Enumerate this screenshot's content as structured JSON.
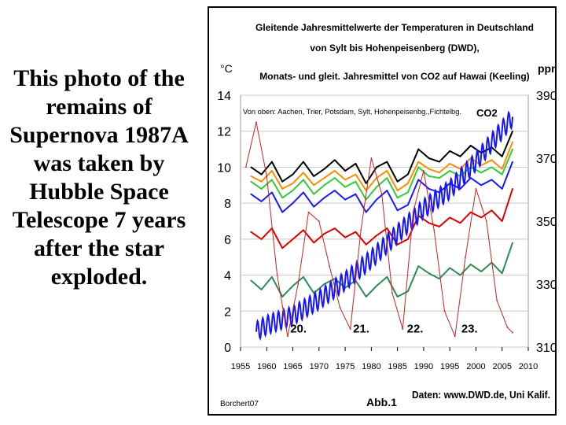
{
  "caption": {
    "text": "This photo of the remains of Supernova 1987A was taken by Hubble Space Telescope 7 years after the star exploded."
  },
  "chart_data": {
    "type": "line",
    "title_lines": [
      "Gleitende Jahresmittelwerte der Temperaturen in Deutschland",
      "von Sylt bis Hohenpeisenberg (DWD),",
      "Monats-  und gleit. Jahresmittel von CO2 auf Hawai (Keeling)"
    ],
    "left_unit": "°C",
    "right_unit": "ppm",
    "legend_text": "Von oben: Aachen, Trier, Potsdam, Sylt, Hohenpeisenbg.,Fichtelbg.",
    "co2_label": "CO2",
    "xlim": [
      1955,
      2010
    ],
    "ylim_left": [
      0,
      14
    ],
    "ylim_right": [
      310,
      390
    ],
    "x_ticks": [
      "1955",
      "1960",
      "1965",
      "1970",
      "1975",
      "1980",
      "1985",
      "1990",
      "1995",
      "2000",
      "2005",
      "2010"
    ],
    "y_left_ticks": [
      "0",
      "2",
      "4",
      "6",
      "8",
      "10",
      "12",
      "14"
    ],
    "y_right_ticks": [
      "310",
      "330",
      "350",
      "370",
      "390"
    ],
    "cycle_labels": [
      {
        "text": "20.",
        "x": 1964.5,
        "y": 0.8
      },
      {
        "text": "21.",
        "x": 1976.5,
        "y": 0.8
      },
      {
        "text": "22.",
        "x": 1986.8,
        "y": 0.8
      },
      {
        "text": "23.",
        "x": 1997.2,
        "y": 0.8
      }
    ],
    "footer": {
      "left": "Borchert07",
      "center": "Abb.1",
      "right": "Daten: www.DWD.de, Uni Kalif."
    },
    "colors": {
      "aachen": "#000000",
      "trier": "#ff8c00",
      "potsdam": "#33cc33",
      "sylt": "#1a1aff",
      "hohenpeissenberg": "#e00000",
      "fichtelberg": "#2e8b57",
      "co2": "#1414ff",
      "sunspots": "#d42020"
    },
    "series": [
      {
        "name": "Aachen",
        "color_key": "aachen",
        "x": [
          1957,
          1959,
          1961,
          1963,
          1965,
          1967,
          1969,
          1971,
          1973,
          1975,
          1977,
          1979,
          1981,
          1983,
          1985,
          1987,
          1989,
          1991,
          1993,
          1995,
          1997,
          1999,
          2001,
          2003,
          2005,
          2007
        ],
        "y": [
          10.0,
          9.6,
          10.3,
          9.2,
          9.6,
          10.3,
          9.5,
          9.9,
          10.4,
          9.8,
          10.2,
          9.1,
          10.0,
          10.3,
          9.2,
          9.6,
          11.0,
          10.5,
          10.3,
          10.9,
          10.6,
          11.2,
          10.8,
          11.1,
          10.6,
          12.0
        ]
      },
      {
        "name": "Trier",
        "color_key": "trier",
        "x": [
          1957,
          1959,
          1961,
          1963,
          1965,
          1967,
          1969,
          1971,
          1973,
          1975,
          1977,
          1979,
          1981,
          1983,
          1985,
          1987,
          1989,
          1991,
          1993,
          1995,
          1997,
          1999,
          2001,
          2003,
          2005,
          2007
        ],
        "y": [
          9.5,
          9.2,
          9.8,
          8.8,
          9.1,
          9.7,
          9.0,
          9.4,
          9.8,
          9.3,
          9.6,
          8.7,
          9.4,
          9.8,
          8.7,
          9.1,
          10.3,
          9.9,
          9.7,
          10.2,
          9.9,
          10.5,
          10.1,
          10.4,
          9.9,
          11.4
        ]
      },
      {
        "name": "Potsdam",
        "color_key": "potsdam",
        "x": [
          1957,
          1959,
          1961,
          1963,
          1965,
          1967,
          1969,
          1971,
          1973,
          1975,
          1977,
          1979,
          1981,
          1983,
          1985,
          1987,
          1989,
          1991,
          1993,
          1995,
          1997,
          1999,
          2001,
          2003,
          2005,
          2007
        ],
        "y": [
          9.2,
          8.8,
          9.3,
          8.3,
          8.7,
          9.3,
          8.5,
          9.0,
          9.4,
          8.9,
          9.2,
          8.2,
          8.9,
          9.4,
          8.3,
          8.6,
          10.0,
          9.5,
          9.4,
          9.8,
          9.5,
          10.0,
          9.7,
          10.0,
          9.6,
          11.0
        ]
      },
      {
        "name": "Sylt",
        "color_key": "sylt",
        "x": [
          1957,
          1959,
          1961,
          1963,
          1965,
          1967,
          1969,
          1971,
          1973,
          1975,
          1977,
          1979,
          1981,
          1983,
          1985,
          1987,
          1989,
          1991,
          1993,
          1995,
          1997,
          1999,
          2001,
          2003,
          2005,
          2007
        ],
        "y": [
          8.5,
          8.1,
          8.6,
          7.5,
          8.0,
          8.6,
          7.8,
          8.3,
          8.7,
          8.2,
          8.5,
          7.5,
          8.2,
          8.7,
          7.6,
          7.9,
          9.3,
          8.8,
          8.6,
          9.1,
          8.8,
          9.4,
          9.0,
          9.3,
          8.8,
          10.3
        ]
      },
      {
        "name": "Hohenpeissenberg",
        "color_key": "hohenpeissenberg",
        "x": [
          1957,
          1959,
          1961,
          1963,
          1965,
          1967,
          1969,
          1971,
          1973,
          1975,
          1977,
          1979,
          1981,
          1983,
          1985,
          1987,
          1989,
          1991,
          1993,
          1995,
          1997,
          1999,
          2001,
          2003,
          2005,
          2007
        ],
        "y": [
          6.4,
          6.0,
          6.6,
          5.5,
          6.0,
          6.5,
          5.8,
          6.3,
          6.6,
          6.1,
          6.4,
          5.7,
          6.2,
          6.6,
          5.7,
          6.0,
          7.3,
          6.9,
          6.7,
          7.2,
          6.9,
          7.5,
          7.2,
          7.6,
          7.0,
          8.8
        ]
      },
      {
        "name": "Fichtelberg",
        "color_key": "fichtelberg",
        "x": [
          1957,
          1959,
          1961,
          1963,
          1965,
          1967,
          1969,
          1971,
          1973,
          1975,
          1977,
          1979,
          1981,
          1983,
          1985,
          1987,
          1989,
          1991,
          1993,
          1995,
          1997,
          1999,
          2001,
          2003,
          2005,
          2007
        ],
        "y": [
          3.7,
          3.2,
          3.9,
          2.8,
          3.4,
          3.9,
          3.0,
          3.5,
          3.8,
          3.3,
          3.7,
          2.8,
          3.4,
          3.9,
          2.8,
          3.1,
          4.5,
          4.1,
          3.8,
          4.4,
          4.0,
          4.6,
          4.2,
          4.7,
          4.1,
          5.8
        ]
      },
      {
        "name": "CO2",
        "color_key": "co2",
        "axis": "right",
        "seasonal_amplitude": 3,
        "x": [
          1958,
          1960,
          1965,
          1970,
          1975,
          1980,
          1985,
          1990,
          1995,
          2000,
          2005,
          2007
        ],
        "y": [
          315,
          317,
          320,
          325,
          331,
          338,
          346,
          354,
          360,
          369,
          379,
          383
        ]
      },
      {
        "name": "Sunspots",
        "color_key": "sunspots",
        "style": "thin",
        "x": [
          1956,
          1958,
          1960,
          1962,
          1964,
          1966,
          1968,
          1970,
          1972,
          1974,
          1976,
          1978,
          1980,
          1982,
          1984,
          1986,
          1988,
          1990,
          1992,
          1994,
          1996,
          1998,
          2000,
          2002,
          2004,
          2006,
          2007
        ],
        "y": [
          10.0,
          12.5,
          9.5,
          4.0,
          0.6,
          3.5,
          7.5,
          7.0,
          4.5,
          2.2,
          1.0,
          6.5,
          10.5,
          8.5,
          3.0,
          1.0,
          7.5,
          9.8,
          6.5,
          2.0,
          0.6,
          5.0,
          8.8,
          7.0,
          2.6,
          1.1,
          0.8
        ]
      }
    ]
  }
}
